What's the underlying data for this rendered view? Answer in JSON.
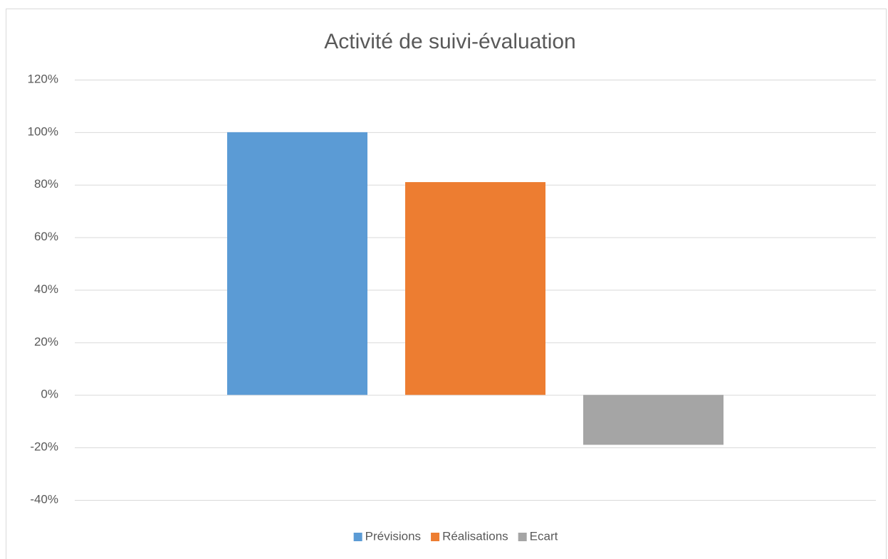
{
  "chart_data": {
    "type": "bar",
    "title": "Activité de suivi-évaluation",
    "categories": [
      null
    ],
    "series": [
      {
        "name": "Prévisions",
        "color": "#5b9bd5",
        "values": [
          100
        ]
      },
      {
        "name": "Réalisations",
        "color": "#ed7d31",
        "values": [
          81
        ]
      },
      {
        "name": "Ecart",
        "color": "#a5a5a5",
        "values": [
          -19
        ]
      }
    ],
    "ylim": [
      -40,
      120
    ],
    "yticks": [
      {
        "value": -40,
        "label": "-40%"
      },
      {
        "value": -20,
        "label": "-20%"
      },
      {
        "value": 0,
        "label": "0%"
      },
      {
        "value": 20,
        "label": "20%"
      },
      {
        "value": 40,
        "label": "40%"
      },
      {
        "value": 60,
        "label": "60%"
      },
      {
        "value": 80,
        "label": "80%"
      },
      {
        "value": 100,
        "label": "100%"
      },
      {
        "value": 120,
        "label": "120%"
      }
    ],
    "grid": true,
    "legend": "bottom"
  }
}
